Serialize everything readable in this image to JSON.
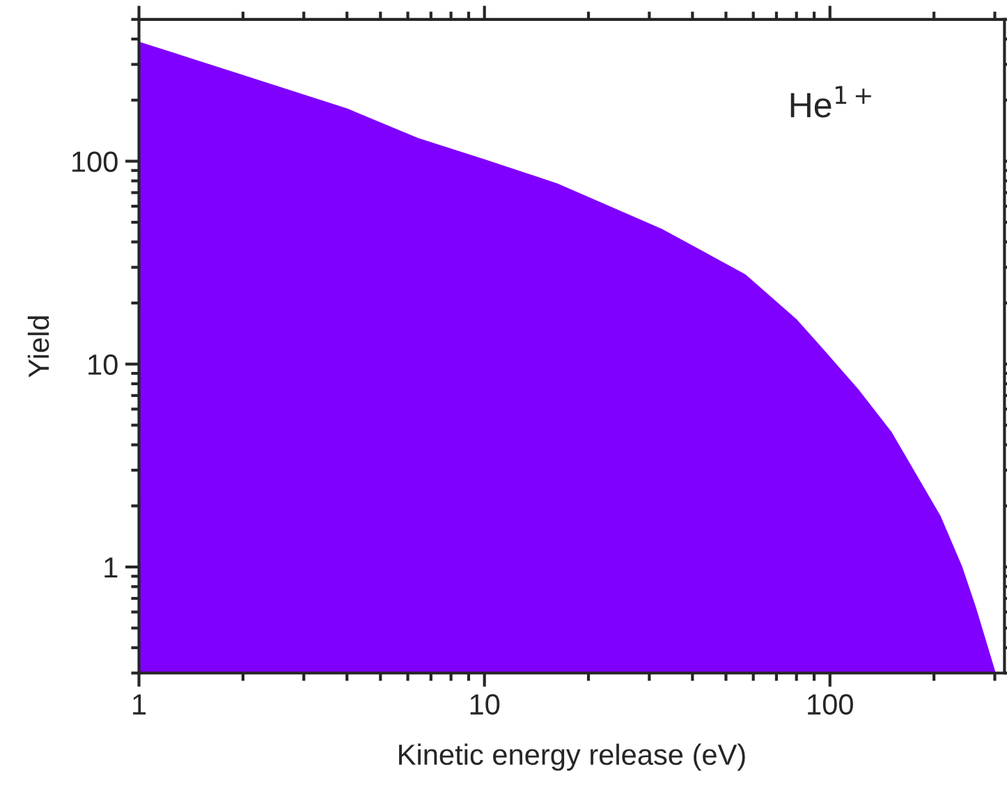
{
  "chart_data": {
    "type": "area",
    "xlabel": "Kinetic energy release (eV)",
    "ylabel": "Yield",
    "x": [
      1,
      2,
      4,
      6.4,
      10,
      16.2,
      32.5,
      56.8,
      80,
      94.6,
      120,
      150,
      208,
      240,
      263,
      300
    ],
    "series": [
      {
        "color": "#7f00ff",
        "values": [
          384,
          263,
          180,
          129,
          101,
          77,
          46,
          27.4,
          16.4,
          11.9,
          7.5,
          4.6,
          1.77,
          1.0,
          0.63,
          0.3
        ]
      }
    ],
    "log": "xy",
    "xlim": [
      1,
      320
    ],
    "ylim": [
      0.3,
      500
    ],
    "xticks": [
      1,
      10,
      100
    ],
    "yticks": [
      1,
      10,
      100
    ],
    "grid": false,
    "annotations": [
      "He$^{1+}$"
    ]
  }
}
